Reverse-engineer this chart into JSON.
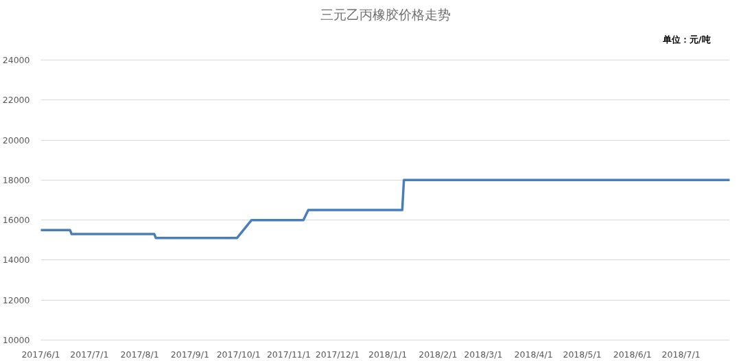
{
  "chart_data": {
    "type": "line",
    "title": "三元乙丙橡胶价格走势",
    "annotations": [
      "单位：元/吨"
    ],
    "x": [
      "2017-06-01",
      "2017-06-19",
      "2017-06-20",
      "2017-08-10",
      "2017-08-11",
      "2017-09-30",
      "2017-10-09",
      "2017-11-10",
      "2017-11-13",
      "2018-01-10",
      "2018-01-11",
      "2018-07-31"
    ],
    "series": [
      {
        "color": "#4a7ebb",
        "values": [
          15500,
          15500,
          15300,
          15300,
          15100,
          15100,
          16000,
          16000,
          16500,
          16500,
          18000,
          18000
        ]
      }
    ],
    "xlim": [
      "2017-06-01",
      "2018-07-31"
    ],
    "xticks": [
      {
        "value": "2017-06-01",
        "label": "2017/6/1"
      },
      {
        "value": "2017-07-01",
        "label": "2017/7/1"
      },
      {
        "value": "2017-08-01",
        "label": "2017/8/1"
      },
      {
        "value": "2017-09-01",
        "label": "2017/9/1"
      },
      {
        "value": "2017-10-01",
        "label": "2017/10/1"
      },
      {
        "value": "2017-11-01",
        "label": "2017/11/1"
      },
      {
        "value": "2017-12-01",
        "label": "2017/12/1"
      },
      {
        "value": "2018-01-01",
        "label": "2018/1/1"
      },
      {
        "value": "2018-02-01",
        "label": "2018/2/1"
      },
      {
        "value": "2018-03-01",
        "label": "2018/3/1"
      },
      {
        "value": "2018-04-01",
        "label": "2018/4/1"
      },
      {
        "value": "2018-05-01",
        "label": "2018/5/1"
      },
      {
        "value": "2018-06-01",
        "label": "2018/6/1"
      },
      {
        "value": "2018-07-01",
        "label": "2018/7/1"
      }
    ],
    "ylim": [
      10000,
      24000
    ],
    "yticks": [
      10000,
      12000,
      14000,
      16000,
      18000,
      20000,
      22000,
      24000
    ],
    "grid": "y",
    "line_style": "solid"
  }
}
